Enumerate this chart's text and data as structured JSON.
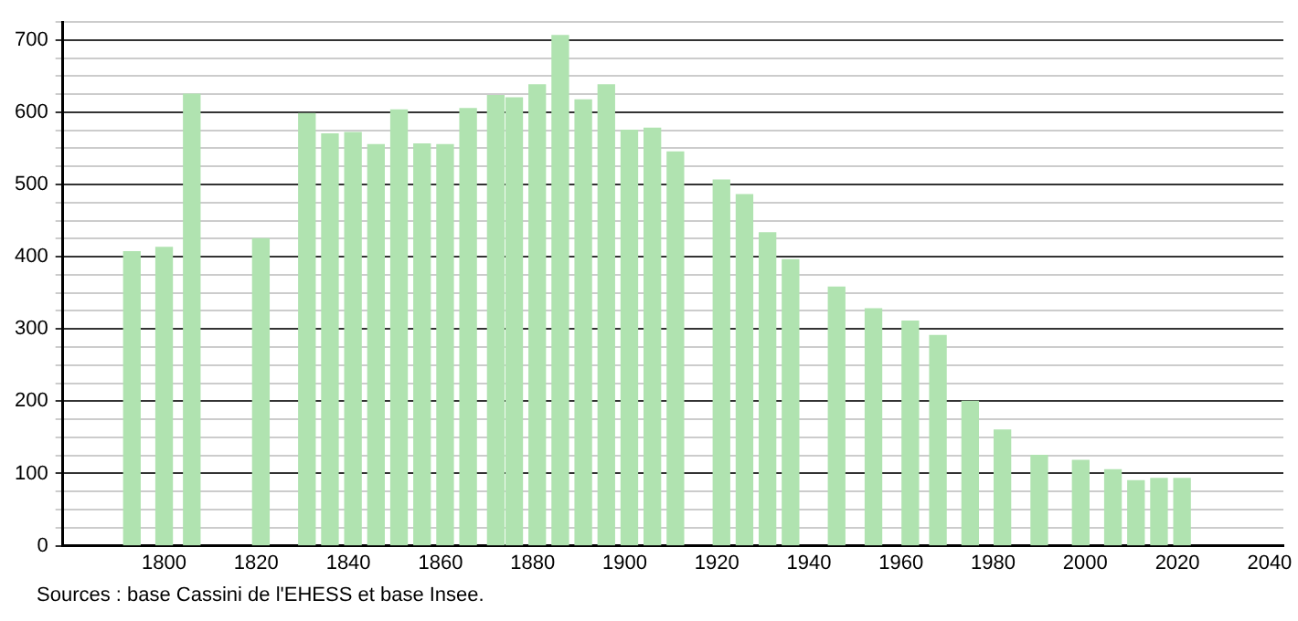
{
  "chart_data": {
    "type": "bar",
    "x": [
      1793,
      1800,
      1806,
      1821,
      1831,
      1836,
      1841,
      1846,
      1851,
      1856,
      1861,
      1866,
      1872,
      1876,
      1881,
      1886,
      1891,
      1896,
      1901,
      1906,
      1911,
      1921,
      1926,
      1931,
      1936,
      1946,
      1954,
      1962,
      1968,
      1975,
      1982,
      1990,
      1999,
      2006,
      2011,
      2016,
      2021
    ],
    "values": [
      407,
      413,
      625,
      425,
      598,
      570,
      572,
      555,
      603,
      556,
      555,
      605,
      623,
      620,
      638,
      706,
      617,
      638,
      575,
      578,
      545,
      506,
      486,
      433,
      396,
      358,
      328,
      311,
      291,
      200,
      160,
      125,
      118,
      105,
      90,
      93,
      93
    ],
    "color": "#b0e3b0",
    "xlim": [
      1778,
      2043
    ],
    "xticks": [
      1800,
      1820,
      1840,
      1860,
      1880,
      1900,
      1920,
      1940,
      1960,
      1980,
      2000,
      2020,
      2040
    ],
    "ylim": [
      0,
      725
    ],
    "yticks": [
      0,
      {
        "value": 25,
        "label": null
      },
      {
        "value": 50,
        "label": null
      },
      {
        "value": 75,
        "label": null
      },
      100,
      {
        "value": 125,
        "label": null
      },
      {
        "value": 150,
        "label": null
      },
      {
        "value": 175,
        "label": null
      },
      200,
      {
        "value": 225,
        "label": null
      },
      {
        "value": 250,
        "label": null
      },
      {
        "value": 275,
        "label": null
      },
      300,
      {
        "value": 325,
        "label": null
      },
      {
        "value": 350,
        "label": null
      },
      {
        "value": 375,
        "label": null
      },
      400,
      {
        "value": 425,
        "label": null
      },
      {
        "value": 450,
        "label": null
      },
      {
        "value": 475,
        "label": null
      },
      500,
      {
        "value": 525,
        "label": null
      },
      {
        "value": 550,
        "label": null
      },
      {
        "value": 575,
        "label": null
      },
      600,
      {
        "value": 625,
        "label": null
      },
      {
        "value": 650,
        "label": null
      },
      {
        "value": 675,
        "label": null
      },
      700,
      {
        "value": 725,
        "label": null
      }
    ],
    "grid": "y",
    "annotations": [
      "Sources : base Cassini de l'EHESS et base Insee."
    ]
  }
}
